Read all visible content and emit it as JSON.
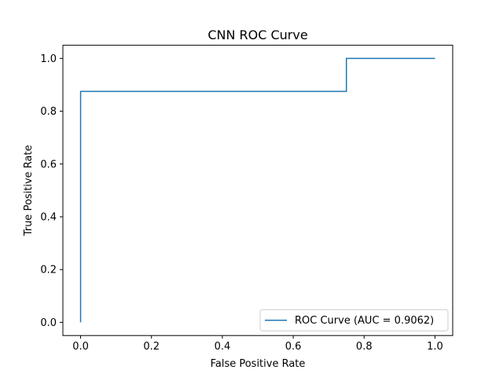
{
  "chart_data": {
    "type": "line",
    "title": "CNN ROC Curve",
    "xlabel": "False Positive Rate",
    "ylabel": "True Positive Rate",
    "xlim": [
      -0.05,
      1.05
    ],
    "ylim": [
      -0.05,
      1.05
    ],
    "xticks": [
      "0.0",
      "0.2",
      "0.4",
      "0.6",
      "0.8",
      "1.0"
    ],
    "yticks": [
      "0.0",
      "0.2",
      "0.4",
      "0.6",
      "0.8",
      "1.0"
    ],
    "grid": false,
    "legend_position": "lower-right",
    "series": [
      {
        "name": "ROC Curve (AUC = 0.9062)",
        "color": "#1f77b4",
        "x": [
          0.0,
          0.0,
          0.75,
          0.75,
          1.0
        ],
        "y": [
          0.0,
          0.875,
          0.875,
          1.0,
          1.0
        ]
      }
    ]
  }
}
